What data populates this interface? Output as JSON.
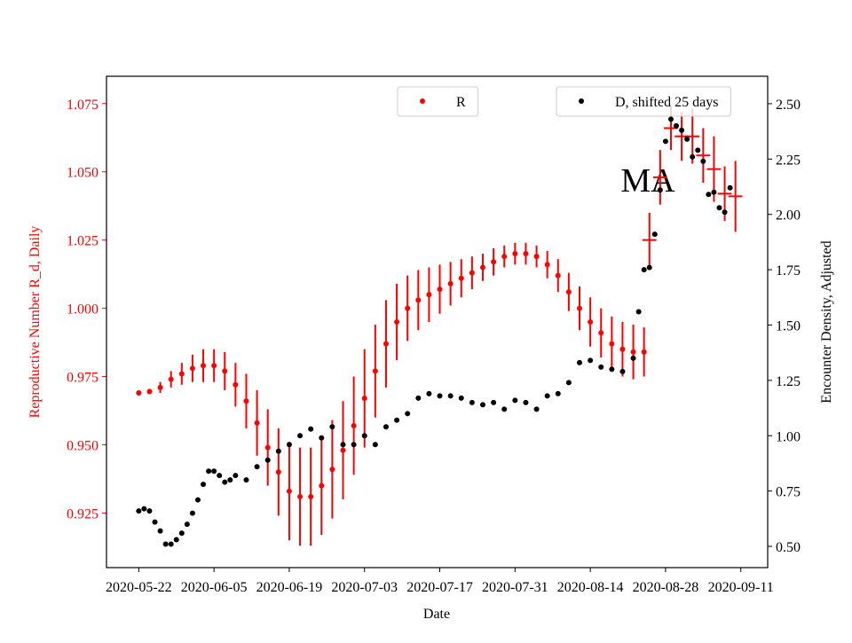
{
  "chart_data": {
    "type": "scatter",
    "x_label": "Date",
    "y_label": "Reproductive Number R_d, Daily",
    "y2_label": "Encounter Density, Adjusted",
    "annotation": "MA",
    "xlim": [
      "2020-05-16",
      "2020-09-16"
    ],
    "xticks": [
      "2020-05-22",
      "2020-06-05",
      "2020-06-19",
      "2020-07-03",
      "2020-07-17",
      "2020-07-31",
      "2020-08-14",
      "2020-08-28",
      "2020-09-11"
    ],
    "ylim": [
      0.905,
      1.085
    ],
    "yticks": [
      0.925,
      {
        "value": 0.95,
        "label": "0.950"
      },
      0.975,
      {
        "value": 1.0,
        "label": "1.000"
      },
      1.025,
      {
        "value": 1.05,
        "label": "1.050"
      },
      1.075
    ],
    "y2lim": [
      0.404,
      2.624
    ],
    "y2ticks": [
      {
        "value": 0.5,
        "label": "0.50"
      },
      0.75,
      {
        "value": 1.0,
        "label": "1.00"
      },
      1.25,
      {
        "value": 1.5,
        "label": "1.50"
      },
      1.75,
      {
        "value": 2.0,
        "label": "2.00"
      },
      2.25,
      {
        "value": 2.5,
        "label": "2.50"
      }
    ],
    "series": [
      {
        "name": "R",
        "color": "#ff0000",
        "legend": "upper center",
        "x": [
          "2020-05-22",
          "2020-05-24",
          "2020-05-26",
          "2020-05-28",
          "2020-05-30",
          "2020-06-01",
          "2020-06-03",
          "2020-06-05",
          "2020-06-07",
          "2020-06-09",
          "2020-06-11",
          "2020-06-13",
          "2020-06-15",
          "2020-06-17",
          "2020-06-19",
          "2020-06-21",
          "2020-06-23",
          "2020-06-25",
          "2020-06-27",
          "2020-06-29",
          "2020-07-01",
          "2020-07-03",
          "2020-07-05",
          "2020-07-07",
          "2020-07-09",
          "2020-07-11",
          "2020-07-13",
          "2020-07-15",
          "2020-07-17",
          "2020-07-19",
          "2020-07-21",
          "2020-07-23",
          "2020-07-25",
          "2020-07-27",
          "2020-07-29",
          "2020-07-31",
          "2020-08-02",
          "2020-08-04",
          "2020-08-06",
          "2020-08-08",
          "2020-08-10",
          "2020-08-12",
          "2020-08-14",
          "2020-08-16",
          "2020-08-18",
          "2020-08-20",
          "2020-08-22",
          "2020-08-24"
        ],
        "values": [
          0.969,
          0.9695,
          0.971,
          0.974,
          0.976,
          0.978,
          0.979,
          0.979,
          0.977,
          0.972,
          0.966,
          0.958,
          0.949,
          0.94,
          0.933,
          0.931,
          0.931,
          0.935,
          0.941,
          0.948,
          0.957,
          0.967,
          0.977,
          0.987,
          0.995,
          1.0,
          1.003,
          1.005,
          1.007,
          1.009,
          1.011,
          1.013,
          1.015,
          1.017,
          1.019,
          1.02,
          1.02,
          1.019,
          1.016,
          1.012,
          1.006,
          1.0,
          0.995,
          0.991,
          0.987,
          0.985,
          0.984,
          0.984
        ],
        "errors": [
          0.001,
          0.001,
          0.002,
          0.003,
          0.004,
          0.005,
          0.006,
          0.006,
          0.007,
          0.008,
          0.01,
          0.012,
          0.014,
          0.016,
          0.018,
          0.018,
          0.018,
          0.018,
          0.018,
          0.018,
          0.018,
          0.018,
          0.017,
          0.016,
          0.014,
          0.012,
          0.011,
          0.01,
          0.009,
          0.008,
          0.007,
          0.006,
          0.005,
          0.005,
          0.004,
          0.004,
          0.004,
          0.004,
          0.005,
          0.006,
          0.007,
          0.008,
          0.009,
          0.009,
          0.01,
          0.01,
          0.01,
          0.009
        ]
      },
      {
        "color": "#ff0000",
        "marker": "cross",
        "xerr": 1.3,
        "x": [
          "2020-08-25",
          "2020-08-27",
          "2020-08-29",
          "2020-08-31",
          "2020-09-02",
          "2020-09-04",
          "2020-09-06",
          "2020-09-08",
          "2020-09-10"
        ],
        "values": [
          1.025,
          1.048,
          1.066,
          1.063,
          1.063,
          1.056,
          1.051,
          1.042,
          1.041
        ],
        "errors": [
          0.01,
          0.01,
          0.008,
          0.009,
          0.01,
          0.01,
          0.012,
          0.01,
          0.013
        ]
      },
      {
        "name": "D, shifted 25 days",
        "color": "#000000",
        "axis": "y2",
        "legend": "upper right",
        "x": [
          "2020-05-22",
          "2020-05-23",
          "2020-05-24",
          "2020-05-25",
          "2020-05-26",
          "2020-05-27",
          "2020-05-28",
          "2020-05-29",
          "2020-05-30",
          "2020-05-31",
          "2020-06-01",
          "2020-06-02",
          "2020-06-03",
          "2020-06-04",
          "2020-06-05",
          "2020-06-06",
          "2020-06-07",
          "2020-06-08",
          "2020-06-09",
          "2020-06-11",
          "2020-06-13",
          "2020-06-15",
          "2020-06-17",
          "2020-06-19",
          "2020-06-21",
          "2020-06-23",
          "2020-06-25",
          "2020-06-27",
          "2020-06-29",
          "2020-07-01",
          "2020-07-03",
          "2020-07-05",
          "2020-07-07",
          "2020-07-09",
          "2020-07-11",
          "2020-07-13",
          "2020-07-15",
          "2020-07-17",
          "2020-07-19",
          "2020-07-21",
          "2020-07-23",
          "2020-07-25",
          "2020-07-27",
          "2020-07-29",
          "2020-07-31",
          "2020-08-02",
          "2020-08-04",
          "2020-08-06",
          "2020-08-08",
          "2020-08-10",
          "2020-08-12",
          "2020-08-14",
          "2020-08-16",
          "2020-08-18",
          "2020-08-20",
          "2020-08-22",
          "2020-08-23",
          "2020-08-24",
          "2020-08-25",
          "2020-08-26",
          "2020-08-27",
          "2020-08-28",
          "2020-08-29",
          "2020-08-30",
          "2020-08-31",
          "2020-09-01",
          "2020-09-02",
          "2020-09-03",
          "2020-09-04",
          "2020-09-05",
          "2020-09-06",
          "2020-09-07",
          "2020-09-08",
          "2020-09-09"
        ],
        "values": [
          0.66,
          0.67,
          0.66,
          0.61,
          0.57,
          0.51,
          0.51,
          0.53,
          0.56,
          0.6,
          0.65,
          0.71,
          0.78,
          0.84,
          0.84,
          0.82,
          0.79,
          0.8,
          0.82,
          0.8,
          0.86,
          0.89,
          0.93,
          0.96,
          1.0,
          1.03,
          0.99,
          1.04,
          0.96,
          0.96,
          1.0,
          0.96,
          1.04,
          1.07,
          1.1,
          1.17,
          1.19,
          1.18,
          1.18,
          1.17,
          1.15,
          1.14,
          1.15,
          1.12,
          1.16,
          1.15,
          1.12,
          1.18,
          1.19,
          1.24,
          1.33,
          1.34,
          1.31,
          1.3,
          1.29,
          1.35,
          1.56,
          1.75,
          1.76,
          1.91,
          2.11,
          2.33,
          2.43,
          2.4,
          2.38,
          2.34,
          2.26,
          2.29,
          2.24,
          2.09,
          2.1,
          2.03,
          2.01,
          2.12
        ]
      }
    ]
  }
}
